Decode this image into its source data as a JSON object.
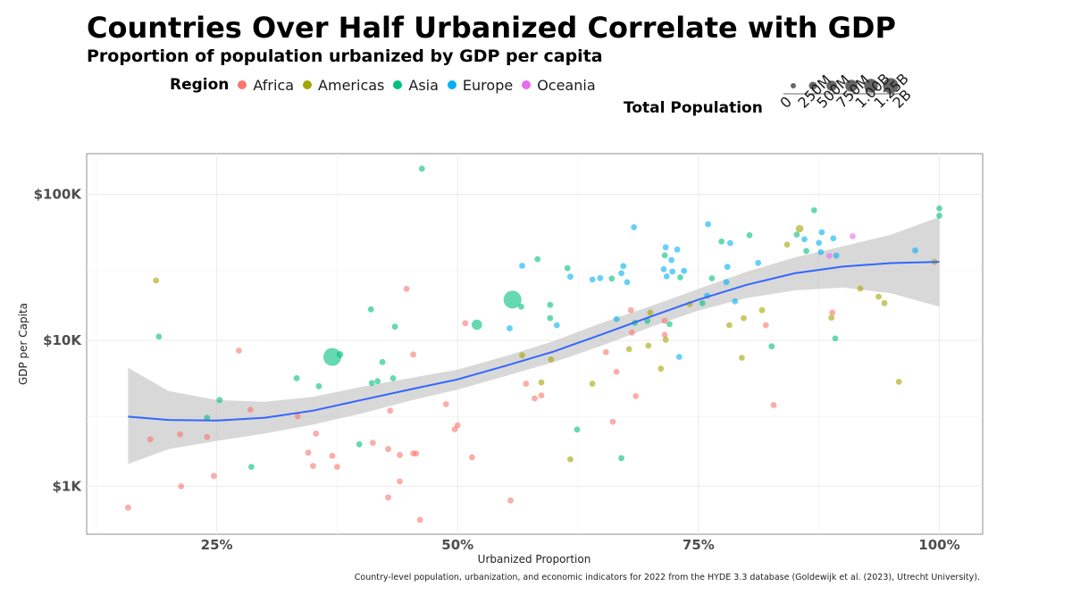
{
  "title": "Countries Over Half Urbanized Correlate with GDP",
  "subtitle": "Proportion of population urbanized by GDP per capita",
  "caption": "Country-level population, urbanization, and economic indicators for 2022 from the HYDE 3.3 database (Goldewijk et al. (2023), Utrecht University).",
  "legend": {
    "region_title": "Region",
    "size_title": "Total Population"
  },
  "chart_data": {
    "type": "scatter",
    "title": "Countries Over Half Urbanized Correlate with GDP",
    "subtitle": "Proportion of population urbanized by GDP per capita",
    "xlabel": "Urbanized Proportion",
    "ylabel": "GDP per Capita",
    "x_scale": "linear",
    "y_scale": "log10",
    "xlim": [
      0.115,
      1.045
    ],
    "ylim": [
      470,
      190000
    ],
    "x_ticks": [
      0.25,
      0.5,
      0.75,
      1.0
    ],
    "x_tick_labels": [
      "25%",
      "50%",
      "75%",
      "100%"
    ],
    "y_ticks": [
      1000,
      10000,
      100000
    ],
    "y_tick_labels": [
      "$1K",
      "$10K",
      "$100K"
    ],
    "grid": true,
    "legend_position": "top",
    "regions": [
      {
        "name": "Africa",
        "color": "#F8766D"
      },
      {
        "name": "Americas",
        "color": "#A3A500"
      },
      {
        "name": "Asia",
        "color": "#00BF7D"
      },
      {
        "name": "Europe",
        "color": "#00B0F6"
      },
      {
        "name": "Oceania",
        "color": "#E76BF3"
      }
    ],
    "size_legend": {
      "labels": [
        "0",
        "250M",
        "500M",
        "750M",
        "1.00B",
        "1.25B",
        "2B"
      ],
      "values": [
        0,
        250,
        500,
        750,
        1000,
        1250,
        2000
      ]
    },
    "trend": {
      "method": "loess",
      "color": "#3366FF",
      "band_color": "#BEBEBE",
      "x": [
        0.158,
        0.2,
        0.25,
        0.3,
        0.35,
        0.4,
        0.45,
        0.5,
        0.55,
        0.6,
        0.65,
        0.7,
        0.75,
        0.8,
        0.85,
        0.9,
        0.95,
        1.0
      ],
      "y": [
        3000,
        2850,
        2820,
        2950,
        3300,
        3900,
        4600,
        5400,
        6700,
        8400,
        11000,
        14500,
        19000,
        24000,
        28800,
        32000,
        33800,
        34500
      ],
      "lower": [
        1420,
        1800,
        2050,
        2300,
        2650,
        3150,
        3850,
        4600,
        5700,
        7100,
        9200,
        12300,
        16000,
        19500,
        22000,
        23000,
        21000,
        17000
      ],
      "upper": [
        6500,
        4500,
        3900,
        3800,
        4100,
        4800,
        5500,
        6300,
        7800,
        9900,
        13200,
        17100,
        22500,
        29500,
        37000,
        44000,
        53000,
        70000
      ]
    },
    "points": [
      {
        "region": "Africa",
        "x": 0.158,
        "y": 715,
        "pop": 25
      },
      {
        "region": "Africa",
        "x": 0.181,
        "y": 2100,
        "pop": 20
      },
      {
        "region": "Africa",
        "x": 0.212,
        "y": 2270,
        "pop": 20
      },
      {
        "region": "Africa",
        "x": 0.213,
        "y": 1000,
        "pop": 20
      },
      {
        "region": "Africa",
        "x": 0.24,
        "y": 2180,
        "pop": 20
      },
      {
        "region": "Africa",
        "x": 0.247,
        "y": 1180,
        "pop": 20
      },
      {
        "region": "Africa",
        "x": 0.273,
        "y": 8500,
        "pop": 20
      },
      {
        "region": "Africa",
        "x": 0.285,
        "y": 3350,
        "pop": 20
      },
      {
        "region": "Africa",
        "x": 0.334,
        "y": 3020,
        "pop": 20
      },
      {
        "region": "Africa",
        "x": 0.345,
        "y": 1700,
        "pop": 20
      },
      {
        "region": "Africa",
        "x": 0.35,
        "y": 1380,
        "pop": 20
      },
      {
        "region": "Africa",
        "x": 0.353,
        "y": 2300,
        "pop": 20
      },
      {
        "region": "Africa",
        "x": 0.37,
        "y": 1620,
        "pop": 20
      },
      {
        "region": "Africa",
        "x": 0.375,
        "y": 1360,
        "pop": 20
      },
      {
        "region": "Africa",
        "x": 0.412,
        "y": 1990,
        "pop": 20
      },
      {
        "region": "Africa",
        "x": 0.428,
        "y": 1800,
        "pop": 20
      },
      {
        "region": "Africa",
        "x": 0.428,
        "y": 840,
        "pop": 20
      },
      {
        "region": "Africa",
        "x": 0.43,
        "y": 3300,
        "pop": 20
      },
      {
        "region": "Africa",
        "x": 0.44,
        "y": 1640,
        "pop": 20
      },
      {
        "region": "Africa",
        "x": 0.44,
        "y": 1080,
        "pop": 20
      },
      {
        "region": "Africa",
        "x": 0.447,
        "y": 22500,
        "pop": 20
      },
      {
        "region": "Africa",
        "x": 0.454,
        "y": 8000,
        "pop": 20
      },
      {
        "region": "Africa",
        "x": 0.454,
        "y": 1680,
        "pop": 20
      },
      {
        "region": "Africa",
        "x": 0.457,
        "y": 1680,
        "pop": 20
      },
      {
        "region": "Africa",
        "x": 0.461,
        "y": 590,
        "pop": 20
      },
      {
        "region": "Africa",
        "x": 0.488,
        "y": 3650,
        "pop": 20
      },
      {
        "region": "Africa",
        "x": 0.497,
        "y": 2460,
        "pop": 20
      },
      {
        "region": "Africa",
        "x": 0.5,
        "y": 2620,
        "pop": 20
      },
      {
        "region": "Africa",
        "x": 0.508,
        "y": 13100,
        "pop": 20
      },
      {
        "region": "Africa",
        "x": 0.515,
        "y": 1580,
        "pop": 20
      },
      {
        "region": "Africa",
        "x": 0.555,
        "y": 800,
        "pop": 20
      },
      {
        "region": "Africa",
        "x": 0.571,
        "y": 5050,
        "pop": 20
      },
      {
        "region": "Africa",
        "x": 0.58,
        "y": 4000,
        "pop": 20
      },
      {
        "region": "Africa",
        "x": 0.587,
        "y": 4200,
        "pop": 20
      },
      {
        "region": "Africa",
        "x": 0.654,
        "y": 8300,
        "pop": 20
      },
      {
        "region": "Africa",
        "x": 0.661,
        "y": 2770,
        "pop": 20
      },
      {
        "region": "Africa",
        "x": 0.665,
        "y": 6100,
        "pop": 20
      },
      {
        "region": "Africa",
        "x": 0.68,
        "y": 16100,
        "pop": 20
      },
      {
        "region": "Africa",
        "x": 0.681,
        "y": 11300,
        "pop": 20
      },
      {
        "region": "Africa",
        "x": 0.685,
        "y": 4150,
        "pop": 20
      },
      {
        "region": "Africa",
        "x": 0.715,
        "y": 13600,
        "pop": 20
      },
      {
        "region": "Africa",
        "x": 0.715,
        "y": 10900,
        "pop": 20
      },
      {
        "region": "Africa",
        "x": 0.82,
        "y": 12700,
        "pop": 20
      },
      {
        "region": "Africa",
        "x": 0.828,
        "y": 3600,
        "pop": 20
      },
      {
        "region": "Africa",
        "x": 0.889,
        "y": 15500,
        "pop": 20
      },
      {
        "region": "Americas",
        "x": 0.187,
        "y": 25700,
        "pop": 20
      },
      {
        "region": "Americas",
        "x": 0.567,
        "y": 7900,
        "pop": 20
      },
      {
        "region": "Americas",
        "x": 0.587,
        "y": 5150,
        "pop": 20
      },
      {
        "region": "Americas",
        "x": 0.597,
        "y": 7400,
        "pop": 20
      },
      {
        "region": "Americas",
        "x": 0.617,
        "y": 1530,
        "pop": 20
      },
      {
        "region": "Americas",
        "x": 0.64,
        "y": 5050,
        "pop": 20
      },
      {
        "region": "Americas",
        "x": 0.678,
        "y": 8700,
        "pop": 20
      },
      {
        "region": "Americas",
        "x": 0.698,
        "y": 9200,
        "pop": 20
      },
      {
        "region": "Americas",
        "x": 0.7,
        "y": 15500,
        "pop": 20
      },
      {
        "region": "Americas",
        "x": 0.711,
        "y": 6400,
        "pop": 20
      },
      {
        "region": "Americas",
        "x": 0.716,
        "y": 10100,
        "pop": 20
      },
      {
        "region": "Americas",
        "x": 0.741,
        "y": 17700,
        "pop": 20
      },
      {
        "region": "Americas",
        "x": 0.782,
        "y": 12700,
        "pop": 20
      },
      {
        "region": "Americas",
        "x": 0.795,
        "y": 7600,
        "pop": 20
      },
      {
        "region": "Americas",
        "x": 0.797,
        "y": 14200,
        "pop": 20
      },
      {
        "region": "Americas",
        "x": 0.816,
        "y": 16100,
        "pop": 20
      },
      {
        "region": "Americas",
        "x": 0.842,
        "y": 45300,
        "pop": 20
      },
      {
        "region": "Americas",
        "x": 0.855,
        "y": 58200,
        "pop": 80
      },
      {
        "region": "Americas",
        "x": 0.888,
        "y": 14300,
        "pop": 20
      },
      {
        "region": "Americas",
        "x": 0.918,
        "y": 22600,
        "pop": 20
      },
      {
        "region": "Americas",
        "x": 0.937,
        "y": 19900,
        "pop": 20
      },
      {
        "region": "Americas",
        "x": 0.943,
        "y": 18000,
        "pop": 20
      },
      {
        "region": "Americas",
        "x": 0.958,
        "y": 5200,
        "pop": 20
      },
      {
        "region": "Americas",
        "x": 0.995,
        "y": 34500,
        "pop": 20
      },
      {
        "region": "Asia",
        "x": 0.19,
        "y": 10600,
        "pop": 20
      },
      {
        "region": "Asia",
        "x": 0.24,
        "y": 2950,
        "pop": 20
      },
      {
        "region": "Asia",
        "x": 0.253,
        "y": 3900,
        "pop": 20
      },
      {
        "region": "Asia",
        "x": 0.286,
        "y": 1360,
        "pop": 20
      },
      {
        "region": "Asia",
        "x": 0.333,
        "y": 5500,
        "pop": 20
      },
      {
        "region": "Asia",
        "x": 0.356,
        "y": 4850,
        "pop": 20
      },
      {
        "region": "Asia",
        "x": 0.37,
        "y": 7700,
        "pop": 1400
      },
      {
        "region": "Asia",
        "x": 0.378,
        "y": 8000,
        "pop": 40
      },
      {
        "region": "Asia",
        "x": 0.398,
        "y": 1940,
        "pop": 20
      },
      {
        "region": "Asia",
        "x": 0.41,
        "y": 16300,
        "pop": 20
      },
      {
        "region": "Asia",
        "x": 0.411,
        "y": 5100,
        "pop": 20
      },
      {
        "region": "Asia",
        "x": 0.417,
        "y": 5250,
        "pop": 20
      },
      {
        "region": "Asia",
        "x": 0.422,
        "y": 7100,
        "pop": 20
      },
      {
        "region": "Asia",
        "x": 0.433,
        "y": 5500,
        "pop": 20
      },
      {
        "region": "Asia",
        "x": 0.435,
        "y": 12400,
        "pop": 20
      },
      {
        "region": "Asia",
        "x": 0.463,
        "y": 150000,
        "pop": 20
      },
      {
        "region": "Asia",
        "x": 0.52,
        "y": 12800,
        "pop": 270
      },
      {
        "region": "Asia",
        "x": 0.557,
        "y": 19000,
        "pop": 1400
      },
      {
        "region": "Asia",
        "x": 0.566,
        "y": 17000,
        "pop": 20
      },
      {
        "region": "Asia",
        "x": 0.583,
        "y": 36000,
        "pop": 20
      },
      {
        "region": "Asia",
        "x": 0.596,
        "y": 17500,
        "pop": 20
      },
      {
        "region": "Asia",
        "x": 0.596,
        "y": 14200,
        "pop": 20
      },
      {
        "region": "Asia",
        "x": 0.614,
        "y": 31200,
        "pop": 20
      },
      {
        "region": "Asia",
        "x": 0.624,
        "y": 2450,
        "pop": 20
      },
      {
        "region": "Asia",
        "x": 0.66,
        "y": 26500,
        "pop": 20
      },
      {
        "region": "Asia",
        "x": 0.67,
        "y": 1560,
        "pop": 20
      },
      {
        "region": "Asia",
        "x": 0.684,
        "y": 13200,
        "pop": 20
      },
      {
        "region": "Asia",
        "x": 0.697,
        "y": 13600,
        "pop": 20
      },
      {
        "region": "Asia",
        "x": 0.715,
        "y": 38200,
        "pop": 20
      },
      {
        "region": "Asia",
        "x": 0.72,
        "y": 12900,
        "pop": 20
      },
      {
        "region": "Asia",
        "x": 0.731,
        "y": 27000,
        "pop": 20
      },
      {
        "region": "Asia",
        "x": 0.754,
        "y": 18000,
        "pop": 20
      },
      {
        "region": "Asia",
        "x": 0.764,
        "y": 26600,
        "pop": 20
      },
      {
        "region": "Asia",
        "x": 0.774,
        "y": 47500,
        "pop": 20
      },
      {
        "region": "Asia",
        "x": 0.803,
        "y": 52500,
        "pop": 20
      },
      {
        "region": "Asia",
        "x": 0.826,
        "y": 9100,
        "pop": 20
      },
      {
        "region": "Asia",
        "x": 0.852,
        "y": 53000,
        "pop": 20
      },
      {
        "region": "Asia",
        "x": 0.862,
        "y": 40900,
        "pop": 20
      },
      {
        "region": "Asia",
        "x": 0.87,
        "y": 77800,
        "pop": 20
      },
      {
        "region": "Asia",
        "x": 0.892,
        "y": 10300,
        "pop": 20
      },
      {
        "region": "Asia",
        "x": 1.0,
        "y": 80000,
        "pop": 20
      },
      {
        "region": "Asia",
        "x": 1.0,
        "y": 71500,
        "pop": 20
      },
      {
        "region": "Europe",
        "x": 0.554,
        "y": 12100,
        "pop": 20
      },
      {
        "region": "Europe",
        "x": 0.567,
        "y": 32400,
        "pop": 20
      },
      {
        "region": "Europe",
        "x": 0.603,
        "y": 12700,
        "pop": 20
      },
      {
        "region": "Europe",
        "x": 0.617,
        "y": 27300,
        "pop": 20
      },
      {
        "region": "Europe",
        "x": 0.64,
        "y": 26100,
        "pop": 20
      },
      {
        "region": "Europe",
        "x": 0.648,
        "y": 26700,
        "pop": 20
      },
      {
        "region": "Europe",
        "x": 0.665,
        "y": 14000,
        "pop": 20
      },
      {
        "region": "Europe",
        "x": 0.67,
        "y": 28800,
        "pop": 20
      },
      {
        "region": "Europe",
        "x": 0.672,
        "y": 32300,
        "pop": 20
      },
      {
        "region": "Europe",
        "x": 0.676,
        "y": 25000,
        "pop": 20
      },
      {
        "region": "Europe",
        "x": 0.683,
        "y": 59500,
        "pop": 20
      },
      {
        "region": "Europe",
        "x": 0.714,
        "y": 30700,
        "pop": 20
      },
      {
        "region": "Europe",
        "x": 0.716,
        "y": 43400,
        "pop": 20
      },
      {
        "region": "Europe",
        "x": 0.717,
        "y": 27400,
        "pop": 20
      },
      {
        "region": "Europe",
        "x": 0.722,
        "y": 35500,
        "pop": 20
      },
      {
        "region": "Europe",
        "x": 0.723,
        "y": 29600,
        "pop": 20
      },
      {
        "region": "Europe",
        "x": 0.728,
        "y": 41900,
        "pop": 20
      },
      {
        "region": "Europe",
        "x": 0.73,
        "y": 7700,
        "pop": 20
      },
      {
        "region": "Europe",
        "x": 0.735,
        "y": 29900,
        "pop": 20
      },
      {
        "region": "Europe",
        "x": 0.759,
        "y": 20200,
        "pop": 20
      },
      {
        "region": "Europe",
        "x": 0.76,
        "y": 62400,
        "pop": 20
      },
      {
        "region": "Europe",
        "x": 0.779,
        "y": 25100,
        "pop": 20
      },
      {
        "region": "Europe",
        "x": 0.78,
        "y": 31900,
        "pop": 20
      },
      {
        "region": "Europe",
        "x": 0.783,
        "y": 46400,
        "pop": 20
      },
      {
        "region": "Europe",
        "x": 0.788,
        "y": 18500,
        "pop": 20
      },
      {
        "region": "Europe",
        "x": 0.812,
        "y": 33900,
        "pop": 20
      },
      {
        "region": "Europe",
        "x": 0.86,
        "y": 49200,
        "pop": 20
      },
      {
        "region": "Europe",
        "x": 0.875,
        "y": 46500,
        "pop": 20
      },
      {
        "region": "Europe",
        "x": 0.877,
        "y": 40300,
        "pop": 20
      },
      {
        "region": "Europe",
        "x": 0.878,
        "y": 55000,
        "pop": 20
      },
      {
        "region": "Europe",
        "x": 0.89,
        "y": 50000,
        "pop": 20
      },
      {
        "region": "Europe",
        "x": 0.893,
        "y": 38000,
        "pop": 20
      },
      {
        "region": "Europe",
        "x": 0.975,
        "y": 41300,
        "pop": 20
      },
      {
        "region": "Oceania",
        "x": 0.886,
        "y": 37900,
        "pop": 20
      },
      {
        "region": "Oceania",
        "x": 0.91,
        "y": 51600,
        "pop": 20
      }
    ]
  }
}
